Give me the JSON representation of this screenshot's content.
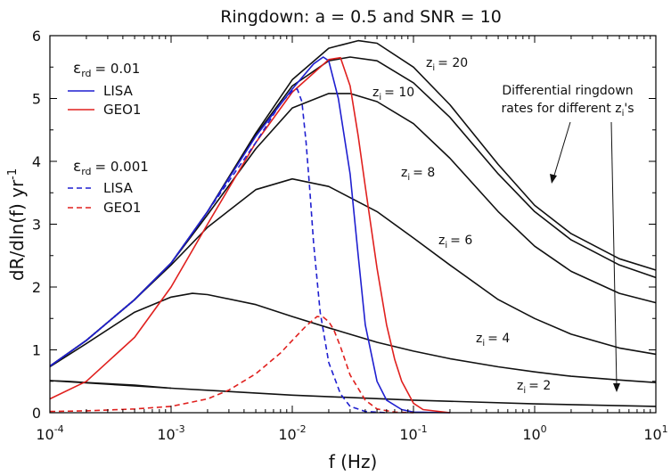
{
  "chart_data": {
    "type": "line",
    "title": "Ringdown: a = 0.5 and SNR = 10",
    "xlabel": {
      "text": "f (Hz)"
    },
    "ylabel": {
      "base": "dR/dln(f) yr",
      "sup": "-1"
    },
    "xscale": "log",
    "xlim": [
      0.0001,
      10
    ],
    "ylim": [
      0,
      6
    ],
    "xticks": [
      {
        "value": 0.0001,
        "base": "10",
        "exp": "-4"
      },
      {
        "value": 0.001,
        "base": "10",
        "exp": "-3"
      },
      {
        "value": 0.01,
        "base": "10",
        "exp": "-2"
      },
      {
        "value": 0.1,
        "base": "10",
        "exp": "-1"
      },
      {
        "value": 1,
        "base": "10",
        "exp": "0"
      },
      {
        "value": 10,
        "base": "10",
        "exp": "1"
      }
    ],
    "yticks": [
      0,
      1,
      2,
      3,
      4,
      5,
      6
    ],
    "grid": false,
    "legend": {
      "placement": "top-left",
      "groups": [
        {
          "header_sym": "ε",
          "header_sub": "rd",
          "header_val": "= 0.01",
          "entries": [
            {
              "label": "LISA",
              "color": "#1f1fd0",
              "dash": "solid"
            },
            {
              "label": "GEO1",
              "color": "#e0201e",
              "dash": "solid"
            }
          ]
        },
        {
          "header_sym": "ε",
          "header_sub": "rd",
          "header_val": "= 0.001",
          "entries": [
            {
              "label": "LISA",
              "color": "#1f1fd0",
              "dash": "dashed"
            },
            {
              "label": "GEO1",
              "color": "#e0201e",
              "dash": "dashed"
            }
          ]
        }
      ]
    },
    "series": [
      {
        "zi_text": "20",
        "color": "#111111",
        "dash": "solid",
        "x": [
          0.0001,
          0.0002,
          0.0005,
          0.001,
          0.002,
          0.005,
          0.01,
          0.02,
          0.035,
          0.05,
          0.1,
          0.2,
          0.5,
          1,
          2,
          5,
          10
        ],
        "y": [
          0.74,
          1.15,
          1.8,
          2.38,
          3.2,
          4.45,
          5.3,
          5.8,
          5.92,
          5.88,
          5.5,
          4.9,
          3.95,
          3.3,
          2.85,
          2.45,
          2.27
        ]
      },
      {
        "zi_text": "",
        "color": "#111111",
        "dash": "solid",
        "x": [
          0.0001,
          0.0002,
          0.0005,
          0.001,
          0.002,
          0.005,
          0.01,
          0.02,
          0.03,
          0.05,
          0.1,
          0.2,
          0.5,
          1,
          2,
          5,
          10
        ],
        "y": [
          0.74,
          1.15,
          1.8,
          2.38,
          3.2,
          4.42,
          5.2,
          5.6,
          5.66,
          5.6,
          5.25,
          4.7,
          3.8,
          3.2,
          2.75,
          2.35,
          2.15
        ]
      },
      {
        "zi_text": "10",
        "color": "#111111",
        "dash": "solid",
        "x": [
          0.0001,
          0.0002,
          0.0005,
          0.001,
          0.002,
          0.005,
          0.01,
          0.02,
          0.03,
          0.05,
          0.1,
          0.2,
          0.5,
          1,
          2,
          5,
          10
        ],
        "y": [
          0.74,
          1.15,
          1.8,
          2.38,
          3.15,
          4.2,
          4.85,
          5.08,
          5.08,
          4.95,
          4.6,
          4.05,
          3.2,
          2.65,
          2.25,
          1.9,
          1.75
        ]
      },
      {
        "zi_text": "8",
        "color": "#111111",
        "dash": "solid",
        "x": [
          0.0001,
          0.0002,
          0.0005,
          0.001,
          0.002,
          0.005,
          0.01,
          0.02,
          0.05,
          0.1,
          0.2,
          0.5,
          1,
          2,
          5,
          10
        ],
        "y": [
          0.74,
          1.15,
          1.8,
          2.35,
          2.95,
          3.55,
          3.72,
          3.6,
          3.2,
          2.78,
          2.35,
          1.8,
          1.5,
          1.25,
          1.03,
          0.93
        ]
      },
      {
        "zi_text": "6",
        "color": "#111111",
        "dash": "solid",
        "x": [
          0.0001,
          0.0002,
          0.0005,
          0.001,
          0.0015,
          0.002,
          0.005,
          0.01,
          0.02,
          0.05,
          0.1,
          0.2,
          0.5,
          1,
          2,
          5,
          10
        ],
        "y": [
          0.73,
          1.1,
          1.6,
          1.84,
          1.9,
          1.88,
          1.72,
          1.53,
          1.35,
          1.12,
          0.98,
          0.86,
          0.73,
          0.65,
          0.58,
          0.52,
          0.48
        ]
      },
      {
        "zi_text": "4",
        "color": "#111111",
        "dash": "solid",
        "x": [
          0.0001,
          0.001,
          0.01,
          0.1,
          1,
          10
        ],
        "y": [
          0.51,
          0.39,
          0.28,
          0.2,
          0.14,
          0.1
        ]
      },
      {
        "zi_text": "2",
        "color": "#111111",
        "dash": "solid",
        "x": [
          0.0001,
          0.00014,
          0.0002,
          0.0005,
          0.001
        ],
        "y": [
          0.51,
          0.5,
          0.48,
          0.44,
          0.39
        ]
      },
      {
        "zi_text": "",
        "color": "#1f1fd0",
        "dash": "solid",
        "x": [
          0.0001,
          0.0002,
          0.0005,
          0.001,
          0.002,
          0.005,
          0.01,
          0.015,
          0.018,
          0.02,
          0.024,
          0.03,
          0.035,
          0.04,
          0.05,
          0.06,
          0.08,
          0.1,
          0.2
        ],
        "y": [
          0.74,
          1.15,
          1.8,
          2.38,
          3.2,
          4.4,
          5.15,
          5.55,
          5.66,
          5.6,
          5.0,
          3.8,
          2.5,
          1.4,
          0.5,
          0.2,
          0.05,
          0.01,
          0.0
        ]
      },
      {
        "zi_text": "",
        "color": "#e0201e",
        "dash": "solid",
        "x": [
          0.0001,
          0.0002,
          0.0005,
          0.001,
          0.002,
          0.005,
          0.01,
          0.02,
          0.025,
          0.03,
          0.035,
          0.04,
          0.05,
          0.06,
          0.07,
          0.08,
          0.1,
          0.12,
          0.2
        ],
        "y": [
          0.22,
          0.5,
          1.2,
          2.0,
          3.0,
          4.3,
          5.1,
          5.62,
          5.65,
          5.2,
          4.4,
          3.6,
          2.3,
          1.4,
          0.85,
          0.5,
          0.15,
          0.05,
          0.0
        ]
      },
      {
        "zi_text": "",
        "color": "#1f1fd0",
        "dash": "dashed",
        "x": [
          0.0001,
          0.0002,
          0.0005,
          0.001,
          0.002,
          0.005,
          0.008,
          0.01,
          0.011,
          0.012,
          0.013,
          0.014,
          0.015,
          0.017,
          0.02,
          0.025,
          0.03,
          0.04,
          0.06
        ],
        "y": [
          0.74,
          1.15,
          1.8,
          2.38,
          3.2,
          4.3,
          4.92,
          5.12,
          5.15,
          4.95,
          4.3,
          3.5,
          2.7,
          1.6,
          0.8,
          0.3,
          0.1,
          0.02,
          0.0
        ]
      },
      {
        "zi_text": "",
        "color": "#e0201e",
        "dash": "dashed",
        "x": [
          0.0001,
          0.0002,
          0.0005,
          0.001,
          0.002,
          0.003,
          0.005,
          0.008,
          0.01,
          0.013,
          0.016,
          0.018,
          0.02,
          0.022,
          0.025,
          0.03,
          0.04,
          0.05,
          0.07,
          0.1
        ],
        "y": [
          0.02,
          0.03,
          0.06,
          0.1,
          0.22,
          0.36,
          0.62,
          0.95,
          1.15,
          1.38,
          1.53,
          1.52,
          1.45,
          1.32,
          1.05,
          0.6,
          0.2,
          0.06,
          0.01,
          0.0
        ]
      }
    ],
    "annotations": {
      "zi_labels": [
        {
          "base": "z",
          "sub": "i",
          "text": "= 20"
        },
        {
          "base": "z",
          "sub": "i",
          "text": "= 10"
        },
        {
          "base": "z",
          "sub": "i",
          "text": "= 8"
        },
        {
          "base": "z",
          "sub": "i",
          "text": "= 6"
        },
        {
          "base": "z",
          "sub": "i",
          "text": "= 4"
        },
        {
          "base": "z",
          "sub": "i",
          "text": "= 2"
        }
      ],
      "note_line1": "Differential ringdown",
      "note_line2": "rates for different z",
      "note_sub": "i",
      "note_tail": "'s"
    }
  }
}
